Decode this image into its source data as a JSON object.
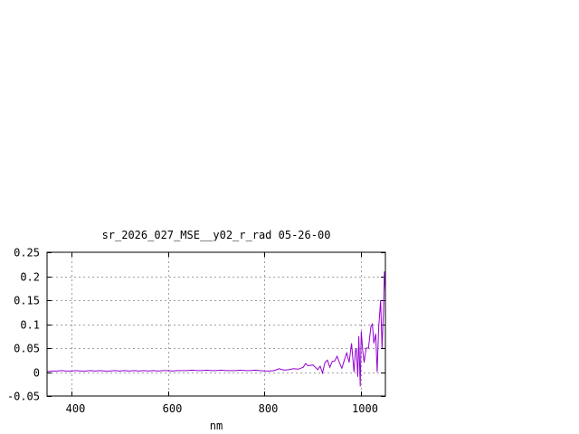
{
  "chart_data": {
    "type": "line",
    "title": "sr_2026_027_MSE__y02_r_rad 05-26-00",
    "xlabel": "nm",
    "ylabel": "",
    "xlim": [
      350,
      1050
    ],
    "ylim": [
      -0.05,
      0.25
    ],
    "xticks": [
      400,
      600,
      800,
      1000
    ],
    "xtick_labels": [
      "400",
      "600",
      "800",
      "1000"
    ],
    "yticks": [
      -0.05,
      0,
      0.05,
      0.1,
      0.15,
      0.2,
      0.25
    ],
    "ytick_labels": [
      "-0.05",
      "0",
      "0.05",
      "0.1",
      "0.15",
      "0.2",
      "0.25"
    ],
    "grid": true,
    "line_color": "#9400d3",
    "series": [
      {
        "x": [
          350,
          360,
          370,
          380,
          390,
          400,
          410,
          420,
          430,
          440,
          450,
          460,
          470,
          480,
          490,
          500,
          510,
          520,
          530,
          540,
          550,
          560,
          570,
          580,
          590,
          600,
          610,
          620,
          630,
          640,
          650,
          660,
          670,
          680,
          690,
          700,
          710,
          720,
          730,
          740,
          750,
          760,
          770,
          780,
          790,
          800,
          810,
          820,
          830,
          840,
          850,
          860,
          870,
          880,
          885,
          890,
          900,
          905,
          910,
          915,
          920,
          925,
          930,
          935,
          940,
          945,
          950,
          955,
          960,
          965,
          970,
          975,
          980,
          985,
          988,
          990,
          993,
          995,
          998,
          1000,
          1003,
          1006,
          1010,
          1015,
          1020,
          1023,
          1026,
          1030,
          1033,
          1036,
          1040,
          1043,
          1046,
          1048,
          1050
        ],
        "y": [
          0.001,
          0.002,
          0.002,
          0.003,
          0.002,
          0.002,
          0.003,
          0.002,
          0.002,
          0.003,
          0.002,
          0.003,
          0.002,
          0.002,
          0.003,
          0.002,
          0.003,
          0.002,
          0.003,
          0.002,
          0.003,
          0.002,
          0.003,
          0.002,
          0.003,
          0.003,
          0.002,
          0.003,
          0.003,
          0.003,
          0.004,
          0.003,
          0.003,
          0.004,
          0.003,
          0.003,
          0.004,
          0.003,
          0.003,
          0.003,
          0.004,
          0.003,
          0.003,
          0.004,
          0.003,
          0.002,
          0.002,
          0.003,
          0.007,
          0.004,
          0.005,
          0.007,
          0.006,
          0.01,
          0.018,
          0.013,
          0.015,
          0.01,
          0.005,
          0.012,
          -0.002,
          0.02,
          0.025,
          0.01,
          0.022,
          0.023,
          0.033,
          0.02,
          0.008,
          0.025,
          0.04,
          0.02,
          0.06,
          0.0,
          0.045,
          0.05,
          -0.01,
          0.075,
          -0.03,
          0.085,
          0.045,
          0.02,
          0.05,
          0.05,
          0.095,
          0.1,
          0.06,
          0.08,
          0.0,
          0.09,
          0.15,
          0.05,
          0.13,
          0.21,
          0.17
        ]
      }
    ]
  }
}
